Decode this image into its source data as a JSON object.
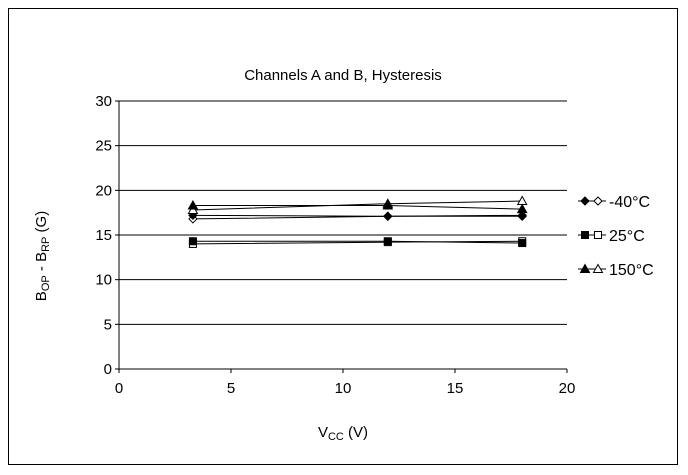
{
  "chart_data": {
    "type": "line",
    "title": "Channels A and B, Hysteresis",
    "xlabel": {
      "main": "V",
      "sub": "CC",
      "rest": " (V)"
    },
    "ylabel": {
      "p1": "B",
      "s1": "OP",
      "mid": " - B",
      "s2": "RP",
      "rest": " (G)"
    },
    "xlim": [
      0,
      20
    ],
    "ylim": [
      0,
      30
    ],
    "xticks": [
      0,
      5,
      10,
      15,
      20
    ],
    "yticks": [
      0,
      5,
      10,
      15,
      20,
      25,
      30
    ],
    "grid": "horizontal",
    "legend_position": "right",
    "series": [
      {
        "name": "-40°C",
        "marker": "diamond",
        "lines": [
          {
            "fill": "open",
            "x": [
              3.3,
              12,
              18
            ],
            "y": [
              16.8,
              17.1,
              17.2
            ]
          },
          {
            "fill": "filled",
            "x": [
              3.3,
              12,
              18
            ],
            "y": [
              17.2,
              17.1,
              17.1
            ]
          }
        ]
      },
      {
        "name": "25°C",
        "marker": "square",
        "lines": [
          {
            "fill": "open",
            "x": [
              3.3,
              12,
              18
            ],
            "y": [
              14.0,
              14.2,
              14.3
            ]
          },
          {
            "fill": "filled",
            "x": [
              3.3,
              12,
              18
            ],
            "y": [
              14.3,
              14.3,
              14.1
            ]
          }
        ]
      },
      {
        "name": "150°C",
        "marker": "triangle",
        "lines": [
          {
            "fill": "open",
            "x": [
              3.3,
              12,
              18
            ],
            "y": [
              17.8,
              18.5,
              18.8
            ]
          },
          {
            "fill": "filled",
            "x": [
              3.3,
              12,
              18
            ],
            "y": [
              18.3,
              18.3,
              17.9
            ]
          }
        ]
      }
    ]
  }
}
